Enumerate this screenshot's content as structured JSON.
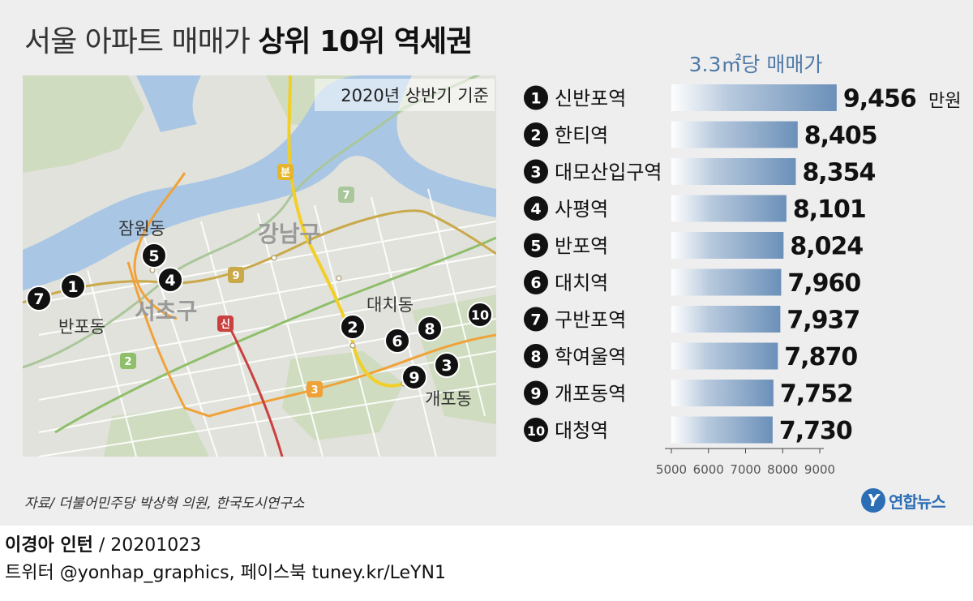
{
  "title": {
    "regular": "서울 아파트 매매가",
    "bold": "상위 10위 역세권"
  },
  "map": {
    "basis": "2020년 상반기 기준",
    "districts": [
      "강남구",
      "서초구"
    ],
    "neighborhoods": [
      "잠원동",
      "반포동",
      "대치동",
      "개포동"
    ],
    "line_badges": [
      "분",
      "7",
      "9",
      "2",
      "신",
      "3"
    ],
    "markers": [
      "1",
      "2",
      "3",
      "4",
      "5",
      "6",
      "7",
      "8",
      "9",
      "10"
    ]
  },
  "chart_data": {
    "type": "bar",
    "orientation": "horizontal",
    "title": "3.3㎡당 매매가",
    "unit": "만원",
    "categories": [
      "신반포역",
      "한티역",
      "대모산입구역",
      "사평역",
      "반포역",
      "대치역",
      "구반포역",
      "학여울역",
      "개포동역",
      "대청역"
    ],
    "values": [
      9456,
      8405,
      8354,
      8101,
      8024,
      7960,
      7937,
      7870,
      7752,
      7730
    ],
    "value_labels": [
      "9,456",
      "8,405",
      "8,354",
      "8,101",
      "8,024",
      "7,960",
      "7,937",
      "7,870",
      "7,752",
      "7,730"
    ],
    "ranks": [
      "1",
      "2",
      "3",
      "4",
      "5",
      "6",
      "7",
      "8",
      "9",
      "10"
    ],
    "xlim": [
      5000,
      9000
    ],
    "xticks": [
      "5000",
      "6000",
      "7000",
      "8000",
      "9000"
    ],
    "bar_color": "#6b90b9"
  },
  "source": "자료/ 더불어민주당 박상혁 의원, 한국도시연구소",
  "logo": {
    "mark": "Y",
    "text": "연합뉴스"
  },
  "credit": {
    "author": "이경아 인턴",
    "date": " / 20201023"
  },
  "social": "트위터 @yonhap_graphics, 페이스북 tuney.kr/LeYN1"
}
